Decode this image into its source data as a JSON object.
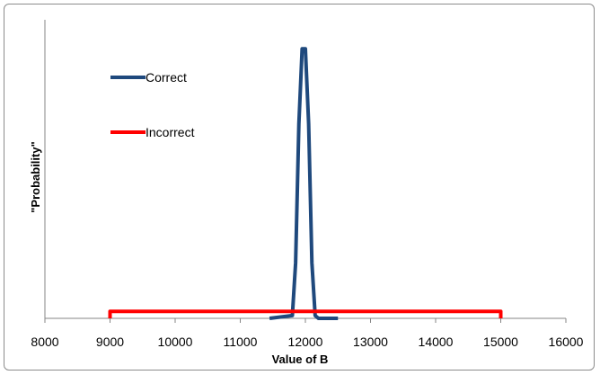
{
  "chart_data": {
    "type": "line",
    "title": "",
    "xlabel": "Value of B",
    "ylabel": "\"Probability\"",
    "xlim": [
      8000,
      16000
    ],
    "x_ticks": [
      8000,
      9000,
      10000,
      11000,
      12000,
      13000,
      14000,
      15000,
      16000
    ],
    "ylim": [
      0,
      1
    ],
    "grid": false,
    "legend_placement": "top-left",
    "series": [
      {
        "name": "Correct",
        "color": "#1f497d",
        "x": [
          11450,
          11800,
          11850,
          11900,
          11950,
          12000,
          12050,
          12100,
          12150,
          12200,
          12500
        ],
        "y": [
          0,
          0.01,
          0.2,
          0.7,
          0.97,
          0.97,
          0.7,
          0.2,
          0.01,
          0,
          0
        ]
      },
      {
        "name": "Incorrect",
        "color": "#ff0000",
        "x": [
          9000,
          9000,
          15000,
          15000
        ],
        "y": [
          0,
          0.025,
          0.025,
          0
        ]
      }
    ]
  }
}
